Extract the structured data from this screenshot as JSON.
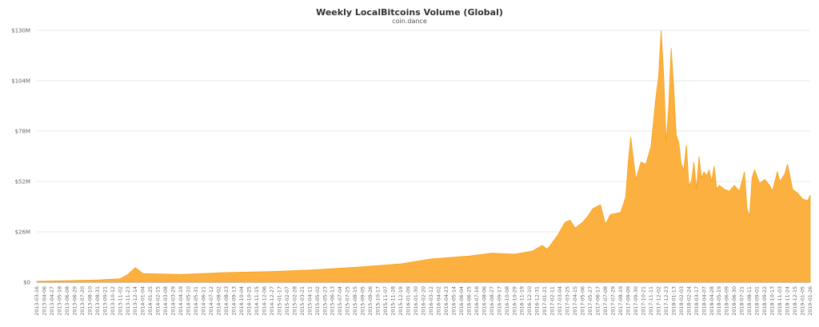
{
  "chart_data": {
    "type": "area",
    "title": "Weekly LocalBitcoins Volume (Global)",
    "subtitle": "coin.dance",
    "xlabel": "",
    "ylabel": "",
    "y_tick_labels": [
      "$0",
      "$26M",
      "$52M",
      "$78M",
      "$104M",
      "$130M"
    ],
    "y_tick_values": [
      0,
      26,
      52,
      78,
      104,
      130
    ],
    "ylim": [
      0,
      130
    ],
    "y_unit": "USD millions",
    "grid": true,
    "legend": "none",
    "colors": {
      "fill": "#fbb040",
      "stroke": "#f7a21b"
    },
    "x_tick_labels": [
      "2013-03-16",
      "2013-04-06",
      "2013-04-27",
      "2013-05-18",
      "2013-06-08",
      "2013-06-29",
      "2013-07-20",
      "2013-08-10",
      "2013-08-31",
      "2013-09-21",
      "2013-10-12",
      "2013-11-02",
      "2013-11-23",
      "2013-12-14",
      "2014-01-04",
      "2014-01-25",
      "2014-02-15",
      "2014-03-08",
      "2014-03-29",
      "2014-04-19",
      "2014-05-10",
      "2014-05-31",
      "2014-06-21",
      "2014-07-12",
      "2014-08-02",
      "2014-08-23",
      "2014-09-13",
      "2014-10-04",
      "2014-10-25",
      "2014-11-15",
      "2014-12-06",
      "2014-12-27",
      "2015-01-17",
      "2015-02-07",
      "2015-02-28",
      "2015-03-21",
      "2015-04-11",
      "2015-05-02",
      "2015-05-23",
      "2015-06-13",
      "2015-07-04",
      "2015-07-25",
      "2015-08-15",
      "2015-09-05",
      "2015-09-26",
      "2015-10-17",
      "2015-11-07",
      "2015-11-28",
      "2015-12-19",
      "2016-01-09",
      "2016-01-30",
      "2016-02-20",
      "2016-03-12",
      "2016-04-02",
      "2016-04-23",
      "2016-05-14",
      "2016-06-04",
      "2016-06-25",
      "2016-07-16",
      "2016-08-06",
      "2016-08-27",
      "2016-09-17",
      "2016-10-08",
      "2016-10-29",
      "2016-11-19",
      "2016-12-10",
      "2016-12-31",
      "2017-01-21",
      "2017-02-11",
      "2017-03-04",
      "2017-03-25",
      "2017-04-15",
      "2017-05-06",
      "2017-05-27",
      "2017-06-17",
      "2017-07-08",
      "2017-07-29",
      "2017-08-19",
      "2017-09-09",
      "2017-09-30",
      "2017-10-21",
      "2017-11-11",
      "2017-12-02",
      "2017-12-23",
      "2018-01-13",
      "2018-02-03",
      "2018-02-24",
      "2018-03-17",
      "2018-04-07",
      "2018-04-28",
      "2018-05-19",
      "2018-06-09",
      "2018-06-30",
      "2018-07-21",
      "2018-08-11",
      "2018-09-01",
      "2018-09-22",
      "2018-10-13",
      "2018-11-03",
      "2018-11-24",
      "2018-12-15",
      "2019-01-05",
      "2019-01-26"
    ],
    "x": [
      "2013-03-16",
      "2013-06-01",
      "2013-09-01",
      "2013-11-02",
      "2013-11-23",
      "2013-12-14",
      "2014-01-04",
      "2014-04-19",
      "2014-08-23",
      "2014-12-27",
      "2015-05-02",
      "2015-09-05",
      "2015-12-19",
      "2016-03-12",
      "2016-06-25",
      "2016-08-27",
      "2016-10-29",
      "2016-12-17",
      "2017-01-14",
      "2017-01-28",
      "2017-02-25",
      "2017-03-18",
      "2017-04-01",
      "2017-04-15",
      "2017-05-06",
      "2017-05-20",
      "2017-06-03",
      "2017-06-24",
      "2017-07-08",
      "2017-07-22",
      "2017-08-19",
      "2017-09-02",
      "2017-09-09",
      "2017-09-16",
      "2017-09-30",
      "2017-10-14",
      "2017-10-28",
      "2017-11-11",
      "2017-11-25",
      "2017-12-02",
      "2017-12-09",
      "2017-12-16",
      "2017-12-23",
      "2017-12-30",
      "2018-01-06",
      "2018-01-13",
      "2018-01-20",
      "2018-01-27",
      "2018-02-03",
      "2018-02-10",
      "2018-02-17",
      "2018-02-24",
      "2018-03-03",
      "2018-03-10",
      "2018-03-17",
      "2018-03-24",
      "2018-03-31",
      "2018-04-07",
      "2018-04-14",
      "2018-04-21",
      "2018-04-28",
      "2018-05-05",
      "2018-05-12",
      "2018-05-19",
      "2018-06-02",
      "2018-06-16",
      "2018-06-30",
      "2018-07-14",
      "2018-07-28",
      "2018-08-04",
      "2018-08-11",
      "2018-08-18",
      "2018-08-25",
      "2018-09-08",
      "2018-09-22",
      "2018-10-06",
      "2018-10-13",
      "2018-10-20",
      "2018-10-27",
      "2018-11-03",
      "2018-11-10",
      "2018-11-17",
      "2018-11-24",
      "2018-12-08",
      "2018-12-22",
      "2019-01-05",
      "2019-01-19",
      "2019-01-26"
    ],
    "values": [
      0.5,
      0.8,
      1.2,
      1.8,
      4,
      7.5,
      4.5,
      4,
      5,
      5.5,
      6.5,
      8,
      9.5,
      12,
      13.5,
      15,
      14.5,
      16,
      19,
      17,
      24,
      31,
      32,
      28,
      31,
      34,
      38,
      40,
      30,
      35,
      36,
      44,
      62,
      75,
      53,
      62,
      61,
      70,
      96,
      106,
      130,
      108,
      72,
      90,
      121,
      100,
      76,
      72,
      61,
      58,
      71,
      50,
      52,
      62,
      48,
      65,
      54,
      57,
      55,
      58,
      52,
      60,
      48,
      50,
      48,
      47,
      50,
      47,
      57,
      38,
      34,
      54,
      58,
      51,
      53,
      50,
      47,
      52,
      57,
      52,
      54,
      56,
      61,
      48,
      46,
      43,
      42,
      45
    ]
  }
}
